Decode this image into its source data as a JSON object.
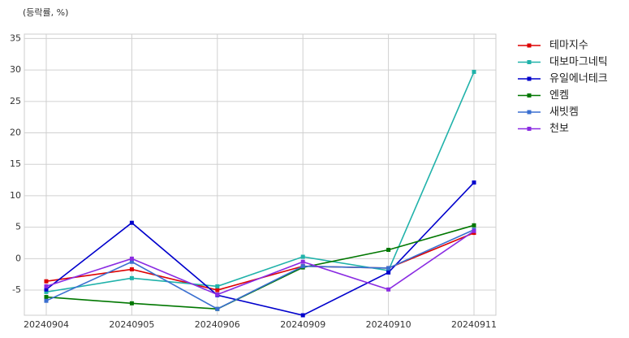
{
  "chart_data": {
    "type": "line",
    "ylabel": "(등락률, %)",
    "categories": [
      "20240904",
      "20240905",
      "20240906",
      "20240909",
      "20240910",
      "20240911"
    ],
    "series": [
      {
        "name": "테마지수",
        "color": "#dd0000",
        "values": [
          -3.6,
          -1.7,
          -5.0,
          -1.2,
          -1.5,
          4.1
        ]
      },
      {
        "name": "대보마그네틱",
        "color": "#20b2aa",
        "values": [
          -5.3,
          -3.1,
          -4.4,
          0.3,
          -1.9,
          29.7
        ]
      },
      {
        "name": "유일에너테크",
        "color": "#0000cc",
        "values": [
          -4.9,
          5.7,
          -5.8,
          -9.0,
          -2.2,
          12.1
        ]
      },
      {
        "name": "엔켐",
        "color": "#007700",
        "values": [
          -6.1,
          -7.1,
          -8.0,
          -1.4,
          1.4,
          5.3
        ]
      },
      {
        "name": "새빗켐",
        "color": "#3a6fd0",
        "values": [
          -6.7,
          -0.5,
          -8.0,
          -1.2,
          -1.5,
          4.6
        ]
      },
      {
        "name": "천보",
        "color": "#8a2be2",
        "values": [
          -4.4,
          0.0,
          -5.7,
          -0.5,
          -4.9,
          4.4
        ]
      }
    ],
    "ylim": [
      -9.0,
      35.7
    ],
    "yticks": [
      -5,
      0,
      5,
      10,
      15,
      20,
      25,
      30,
      35
    ],
    "grid": true,
    "legend": "outside-right"
  }
}
